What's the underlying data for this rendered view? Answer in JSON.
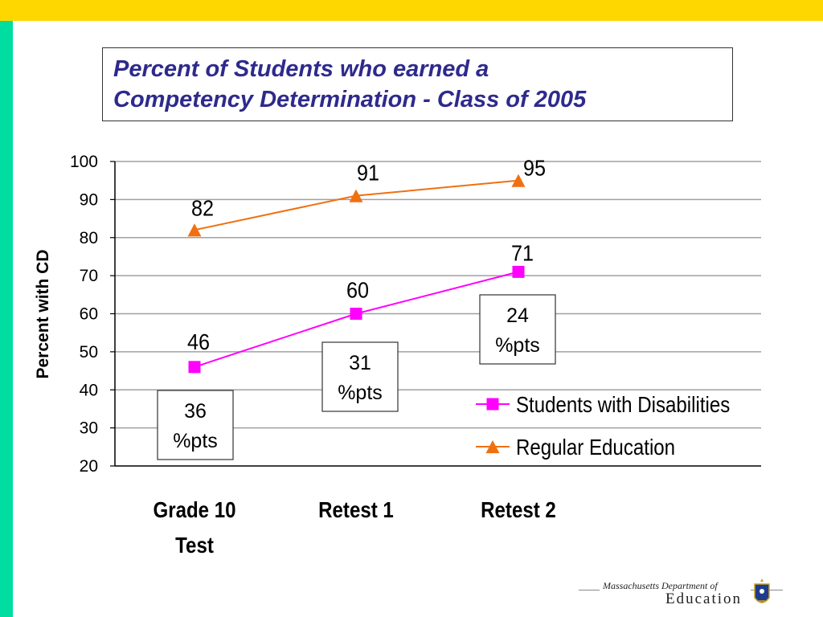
{
  "title": {
    "line1": "Percent of Students who earned a",
    "line2": "Competency Determination - Class of 2005"
  },
  "chart_data": {
    "type": "line",
    "categories": [
      [
        "Grade 10",
        "Test"
      ],
      [
        "Retest 1"
      ],
      [
        "Retest 2"
      ]
    ],
    "series": [
      {
        "name": "Students with Disabilities",
        "values": [
          46,
          60,
          71
        ],
        "color": "#FF00FF",
        "marker": "square"
      },
      {
        "name": "Regular Education",
        "values": [
          82,
          91,
          95
        ],
        "color": "#F07010",
        "marker": "triangle"
      }
    ],
    "ylabel": "Percent with CD",
    "xlabel": "",
    "ylim": [
      20,
      100
    ],
    "yticks": [
      20,
      30,
      40,
      50,
      60,
      70,
      80,
      90,
      100
    ],
    "grid": true,
    "legend_position": "bottom-right",
    "annotations": [
      {
        "lines": [
          "36",
          "%pts"
        ]
      },
      {
        "lines": [
          "31",
          "%pts"
        ]
      },
      {
        "lines": [
          "24",
          "%pts"
        ]
      }
    ]
  },
  "footer": {
    "dept": "Massachusetts Department of",
    "edu": "Education",
    "seal_icon": "massachusetts-seal-icon"
  }
}
